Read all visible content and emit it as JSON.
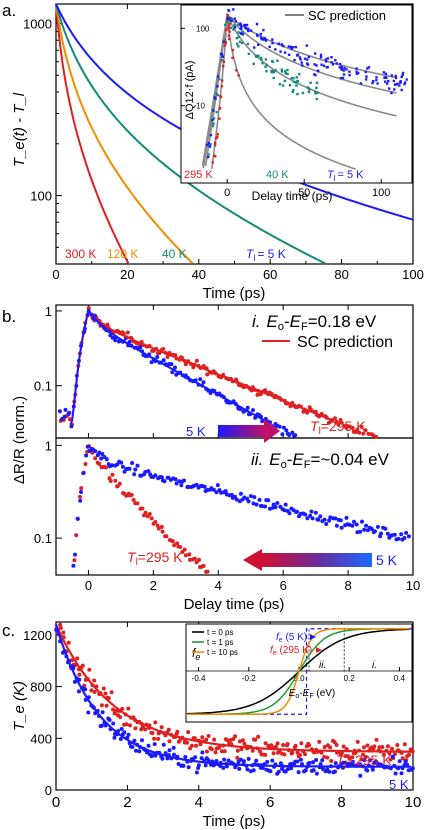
{
  "chart_data": [
    {
      "panel_label": "a.",
      "type": "line",
      "xlabel": "Time (ps)",
      "ylabel": "T_e(t) - T_l",
      "xlim": [
        0,
        100
      ],
      "ylim": [
        40,
        1300
      ],
      "yscale": "log",
      "x_ticks": [
        "0",
        "20",
        "40",
        "60",
        "80",
        "100"
      ],
      "y_ticks": [
        "100",
        "1000"
      ],
      "series": [
        {
          "name": "300 K",
          "color": "#e02020",
          "tau": 1.8,
          "tail": 3.5
        },
        {
          "name": "120 K",
          "color": "#f08c00",
          "tau": 3.2,
          "tail": 7.0
        },
        {
          "name": "40 K",
          "color": "#138a7a",
          "tau": 6.0,
          "tail": 14.5
        },
        {
          "name": "T_l = 5 K",
          "color": "#1a1aff",
          "tau": 10.0,
          "tail": 34.0
        }
      ],
      "labels": [
        "300 K",
        "120 K",
        "40 K",
        "T",
        "l",
        "= 5 K"
      ],
      "inset": {
        "type": "scatter",
        "xlabel": "Delay time (ps)",
        "ylabel": "ΔQ12·f (pA)",
        "xlim": [
          -30,
          120
        ],
        "ylim": [
          1,
          200
        ],
        "yscale": "log",
        "x_ticks": [
          "0",
          "50",
          "100"
        ],
        "y_ticks": [
          "1",
          "10",
          "100"
        ],
        "legend": "SC prediction",
        "series": [
          {
            "name": "295 K",
            "color": "#e02020",
            "tau": 2.5
          },
          {
            "name": "40 K",
            "color": "#138a7a",
            "tau": 12.0
          },
          {
            "name": "T_l = 5 K",
            "color": "#1a1aff",
            "tau": 30.0
          }
        ],
        "labels": [
          "295 K",
          "40 K",
          "T",
          "l",
          "= 5 K"
        ]
      }
    },
    {
      "panel_label": "b.",
      "type": "scatter",
      "xlabel": "Delay time (ps)",
      "ylabel": "ΔR/R (norm.)",
      "xlim": [
        -1,
        10
      ],
      "x_ticks": [
        "0",
        "2",
        "4",
        "6",
        "8",
        "10"
      ],
      "legend": "SC prediction",
      "top": {
        "ylim": [
          0.02,
          1.2
        ],
        "y_ticks": [
          "0.1",
          "1"
        ],
        "title_i": "i.",
        "title_label": "Eo-EF=0.18 eV",
        "title_label_parts": [
          "E",
          "o",
          "-",
          "E",
          "F",
          "=0.18 eV"
        ],
        "series": [
          {
            "name": "295 K",
            "color": "#e02020",
            "tau": 2.5
          },
          {
            "name": "5 K",
            "color": "#1a1aff",
            "tau": 1.8
          }
        ],
        "label_5k": "5 K",
        "label_tl": "T",
        "label_tl_sub": "l",
        "label_tl_rest": "=295 K"
      },
      "bottom": {
        "ylim": [
          0.04,
          1.2
        ],
        "y_ticks": [
          "0.1",
          "1"
        ],
        "title_ii": "ii.",
        "title_label": "Eo-EF=~0.04 eV",
        "title_label_parts": [
          "E",
          "o",
          "-",
          "E",
          "F",
          "=~0.04 eV"
        ],
        "series": [
          {
            "name": "295 K",
            "color": "#e02020",
            "tau": 1.3
          },
          {
            "name": "5 K",
            "color": "#1a1aff",
            "tau": 5.0
          }
        ],
        "label_5k": "5 K",
        "label_tl": "T",
        "label_tl_sub": "l",
        "label_tl_rest": "=295 K"
      }
    },
    {
      "panel_label": "c.",
      "type": "scatter",
      "xlabel": "Time (ps)",
      "ylabel": "T_e (K)",
      "xlim": [
        0,
        10
      ],
      "ylim": [
        0,
        1300
      ],
      "x_ticks": [
        "0",
        "2",
        "4",
        "6",
        "8",
        "10"
      ],
      "y_ticks": [
        "0",
        "400",
        "800",
        "1200"
      ],
      "series": [
        {
          "name": "T_l = 295 K",
          "color": "#e02020",
          "final": 295
        },
        {
          "name": "5 K",
          "color": "#1a1aff",
          "final": 180
        }
      ],
      "labels": [
        "T",
        "l",
        "=295 K",
        "5 K"
      ],
      "inset": {
        "type": "line",
        "xlabel": "Eo-EF (eV)",
        "xlabel_parts": [
          "E",
          "o",
          "-",
          "E",
          "F",
          " (eV)"
        ],
        "ylabel": "fe",
        "xlim": [
          -0.45,
          0.45
        ],
        "x_ticks": [
          "-0.4",
          "-0.2",
          "0.0",
          "0.2",
          "0.4"
        ],
        "legend": [
          "t = 0 ps",
          "t = 1 ps",
          "t = 10 ps"
        ],
        "legend_colors": [
          "#000000",
          "#1e9e2e",
          "#f08c00"
        ],
        "annot": [
          "fe (5 K)",
          "fe (295 K)"
        ],
        "annot_colors": [
          "#1a1aff",
          "#e02020"
        ],
        "markers": [
          "ii.",
          "i."
        ],
        "marker_x": [
          0.04,
          0.18
        ]
      }
    }
  ]
}
